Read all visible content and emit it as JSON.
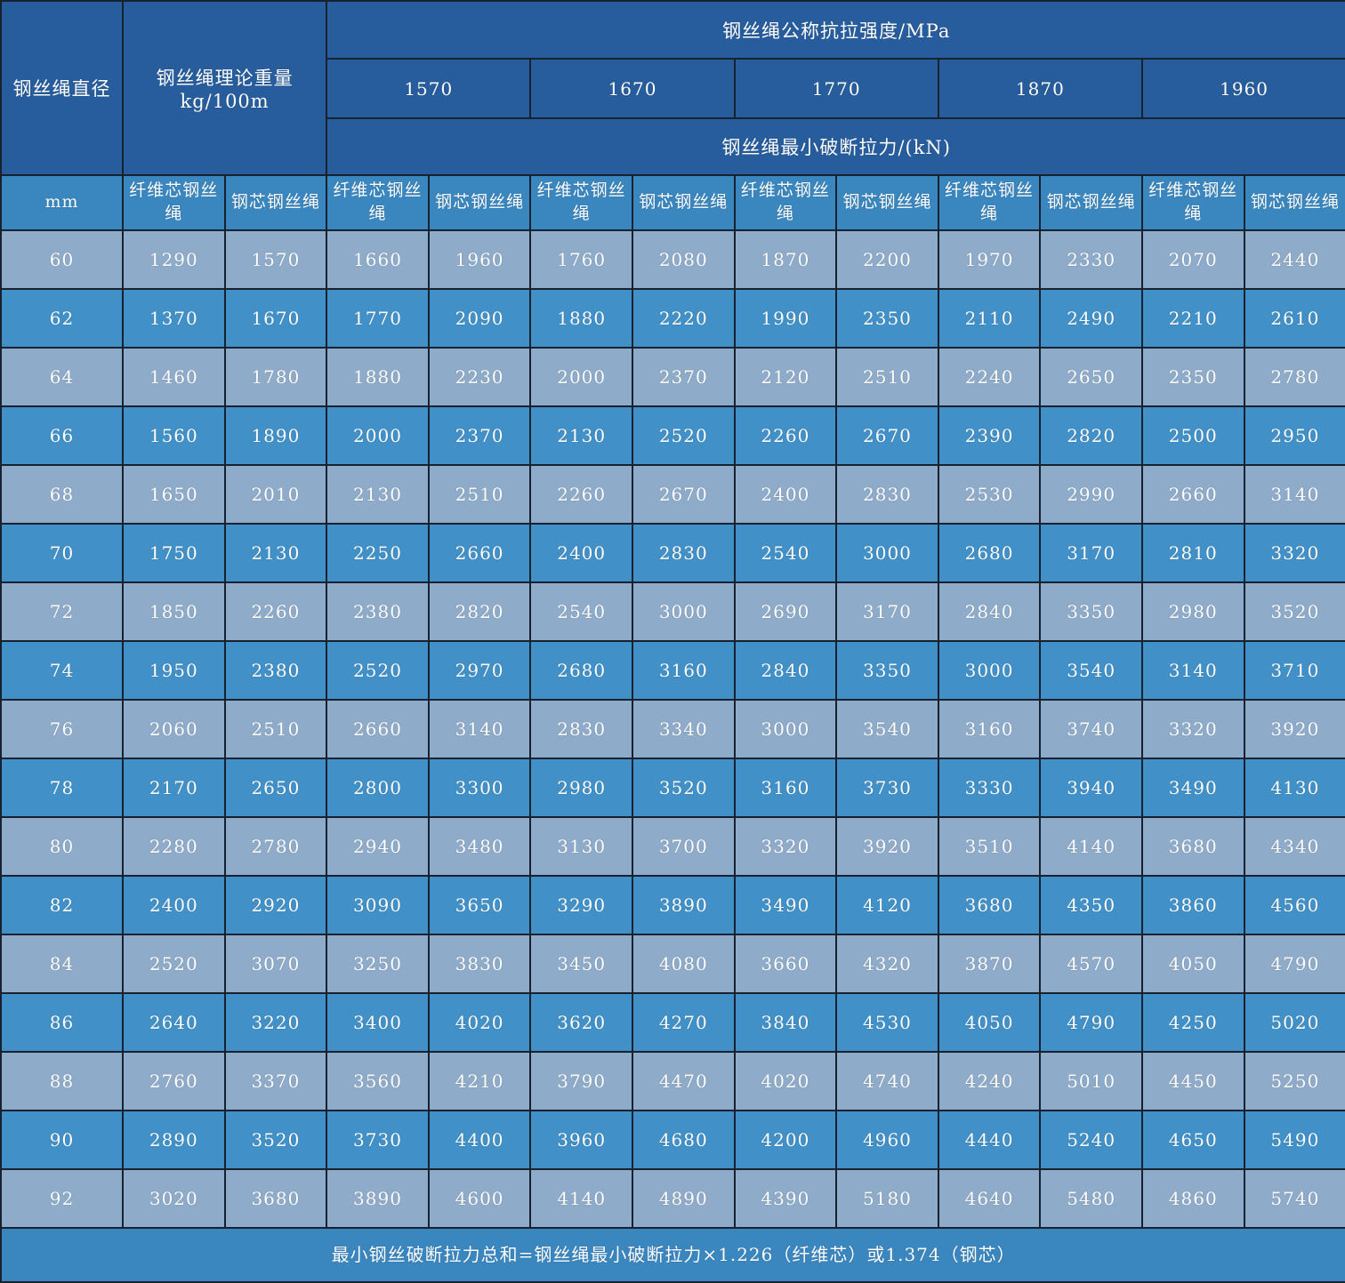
{
  "title_block": {
    "diameter_header": "钢丝绳直径",
    "diameter_unit": "mm",
    "weight_header": "钢丝绳理论重量\nkg/100m",
    "strength_header": "钢丝绳公称抗拉强度/MPa",
    "strength_grades": [
      "1570",
      "1670",
      "1770",
      "1870",
      "1960"
    ],
    "breaking_force_header": "钢丝绳最小破断拉力/(kN)",
    "core_type_fiber": "纤维芯钢丝绳",
    "core_type_steel": "钢芯钢丝绳"
  },
  "rows": [
    {
      "diameter": "60",
      "values": [
        "1290",
        "1570",
        "1660",
        "1960",
        "1760",
        "2080",
        "1870",
        "2200",
        "1970",
        "2330",
        "2070",
        "2440"
      ]
    },
    {
      "diameter": "62",
      "values": [
        "1370",
        "1670",
        "1770",
        "2090",
        "1880",
        "2220",
        "1990",
        "2350",
        "2110",
        "2490",
        "2210",
        "2610"
      ]
    },
    {
      "diameter": "64",
      "values": [
        "1460",
        "1780",
        "1880",
        "2230",
        "2000",
        "2370",
        "2120",
        "2510",
        "2240",
        "2650",
        "2350",
        "2780"
      ]
    },
    {
      "diameter": "66",
      "values": [
        "1560",
        "1890",
        "2000",
        "2370",
        "2130",
        "2520",
        "2260",
        "2670",
        "2390",
        "2820",
        "2500",
        "2950"
      ]
    },
    {
      "diameter": "68",
      "values": [
        "1650",
        "2010",
        "2130",
        "2510",
        "2260",
        "2670",
        "2400",
        "2830",
        "2530",
        "2990",
        "2660",
        "3140"
      ]
    },
    {
      "diameter": "70",
      "values": [
        "1750",
        "2130",
        "2250",
        "2660",
        "2400",
        "2830",
        "2540",
        "3000",
        "2680",
        "3170",
        "2810",
        "3320"
      ]
    },
    {
      "diameter": "72",
      "values": [
        "1850",
        "2260",
        "2380",
        "2820",
        "2540",
        "3000",
        "2690",
        "3170",
        "2840",
        "3350",
        "2980",
        "3520"
      ]
    },
    {
      "diameter": "74",
      "values": [
        "1950",
        "2380",
        "2520",
        "2970",
        "2680",
        "3160",
        "2840",
        "3350",
        "3000",
        "3540",
        "3140",
        "3710"
      ]
    },
    {
      "diameter": "76",
      "values": [
        "2060",
        "2510",
        "2660",
        "3140",
        "2830",
        "3340",
        "3000",
        "3540",
        "3160",
        "3740",
        "3320",
        "3920"
      ]
    },
    {
      "diameter": "78",
      "values": [
        "2170",
        "2650",
        "2800",
        "3300",
        "2980",
        "3520",
        "3160",
        "3730",
        "3330",
        "3940",
        "3490",
        "4130"
      ]
    },
    {
      "diameter": "80",
      "values": [
        "2280",
        "2780",
        "2940",
        "3480",
        "3130",
        "3700",
        "3320",
        "3920",
        "3510",
        "4140",
        "3680",
        "4340"
      ]
    },
    {
      "diameter": "82",
      "values": [
        "2400",
        "2920",
        "3090",
        "3650",
        "3290",
        "3890",
        "3490",
        "4120",
        "3680",
        "4350",
        "3860",
        "4560"
      ]
    },
    {
      "diameter": "84",
      "values": [
        "2520",
        "3070",
        "3250",
        "3830",
        "3450",
        "4080",
        "3660",
        "4320",
        "3870",
        "4570",
        "4050",
        "4790"
      ]
    },
    {
      "diameter": "86",
      "values": [
        "2640",
        "3220",
        "3400",
        "4020",
        "3620",
        "4270",
        "3840",
        "4530",
        "4050",
        "4790",
        "4250",
        "5020"
      ]
    },
    {
      "diameter": "88",
      "values": [
        "2760",
        "3370",
        "3560",
        "4210",
        "3790",
        "4470",
        "4020",
        "4740",
        "4240",
        "5010",
        "4450",
        "5250"
      ]
    },
    {
      "diameter": "90",
      "values": [
        "2890",
        "3520",
        "3730",
        "4400",
        "3960",
        "4680",
        "4200",
        "4960",
        "4440",
        "5240",
        "4650",
        "5490"
      ]
    },
    {
      "diameter": "92",
      "values": [
        "3020",
        "3680",
        "3890",
        "4600",
        "4140",
        "4890",
        "4390",
        "5180",
        "4640",
        "5480",
        "4860",
        "5740"
      ]
    }
  ],
  "footer_note": "最小钢丝破断拉力总和=钢丝绳最小破断拉力×1.226（纤维芯）或1.374（钢芯）",
  "colors": {
    "header_bg": "#275D9C",
    "subheader_bg": "#3A86BF",
    "row_light_bg": "#8EABC9",
    "row_medium_bg": "#4190C7",
    "grid_line": "#18222E",
    "text": "#FFFFFF"
  }
}
